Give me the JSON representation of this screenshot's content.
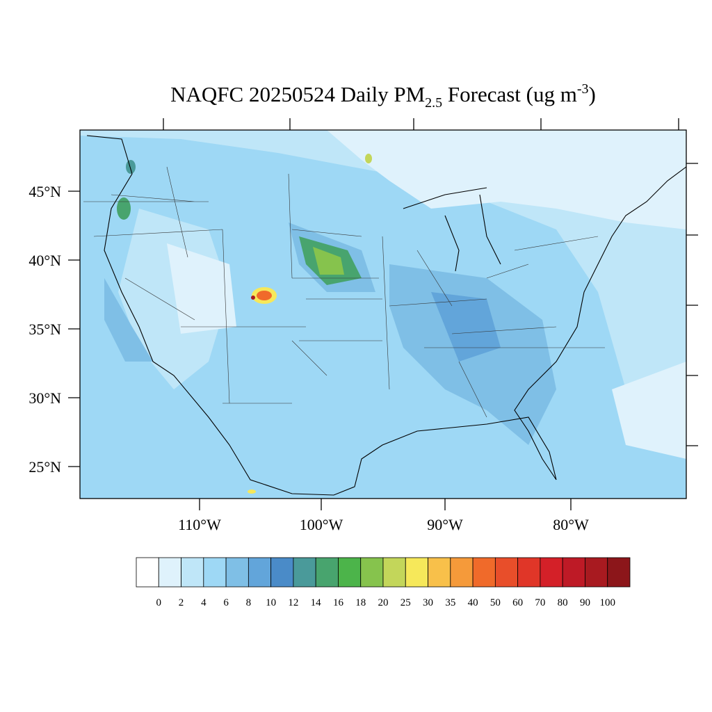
{
  "title": {
    "main": "NAQFC 20250524 Daily PM",
    "sub": "2.5",
    "rest": " Forecast (ug m",
    "sup": "-3",
    "end": ")"
  },
  "lat_labels": [
    "45°N",
    "40°N",
    "35°N",
    "30°N",
    "25°N"
  ],
  "lon_labels": [
    "110°W",
    "100°W",
    "90°W",
    "80°W"
  ],
  "colorbar": {
    "levels": [
      0,
      2,
      4,
      6,
      8,
      10,
      12,
      14,
      16,
      18,
      20,
      25,
      30,
      35,
      40,
      50,
      60,
      70,
      80,
      90,
      100
    ],
    "colors": [
      "#ffffff",
      "#dff2fc",
      "#bfe6f8",
      "#9ed8f5",
      "#7fbfe6",
      "#62a5da",
      "#4a8bc8",
      "#4a9a9a",
      "#48a46e",
      "#4cb44a",
      "#86c34d",
      "#c3d65a",
      "#f6e85a",
      "#f8c04a",
      "#f59a3a",
      "#f06a2a",
      "#e84e2a",
      "#e03628",
      "#d42028",
      "#be1a26",
      "#a81a20",
      "#8c161a"
    ]
  }
}
